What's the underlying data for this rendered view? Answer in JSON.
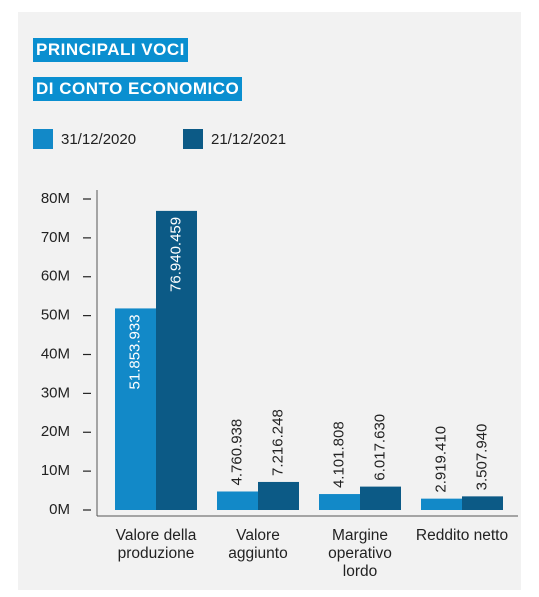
{
  "chart_data": {
    "type": "bar",
    "title_lines": [
      "PRINCIPALI VOCI",
      "DI CONTO ECONOMICO"
    ],
    "categories": [
      "Valore della produzione",
      "Valore aggiunto",
      "Margine operativo lordo",
      "Reddito netto"
    ],
    "series": [
      {
        "name": "31/12/2020",
        "color": "#1289c8",
        "values": [
          51853933,
          4760938,
          4101808,
          2919410
        ],
        "value_labels": [
          "51.853.933",
          "4.760.938",
          "4.101.808",
          "2.919.410"
        ]
      },
      {
        "name": "21/12/2021",
        "color": "#0c5a86",
        "values": [
          76940459,
          7216248,
          6017630,
          3507940
        ],
        "value_labels": [
          "76.940.459",
          "7.216.248",
          "6.017.630",
          "3.507.940"
        ]
      }
    ],
    "ylim": [
      0,
      80000000
    ],
    "yticks": [
      {
        "value": 0,
        "label": "0M"
      },
      {
        "value": 10000000,
        "label": "10M"
      },
      {
        "value": 20000000,
        "label": "20M"
      },
      {
        "value": 30000000,
        "label": "30M"
      },
      {
        "value": 40000000,
        "label": "40M"
      },
      {
        "value": 50000000,
        "label": "50M"
      },
      {
        "value": 60000000,
        "label": "60M"
      },
      {
        "value": 70000000,
        "label": "70M"
      },
      {
        "value": 80000000,
        "label": "80M"
      }
    ]
  }
}
